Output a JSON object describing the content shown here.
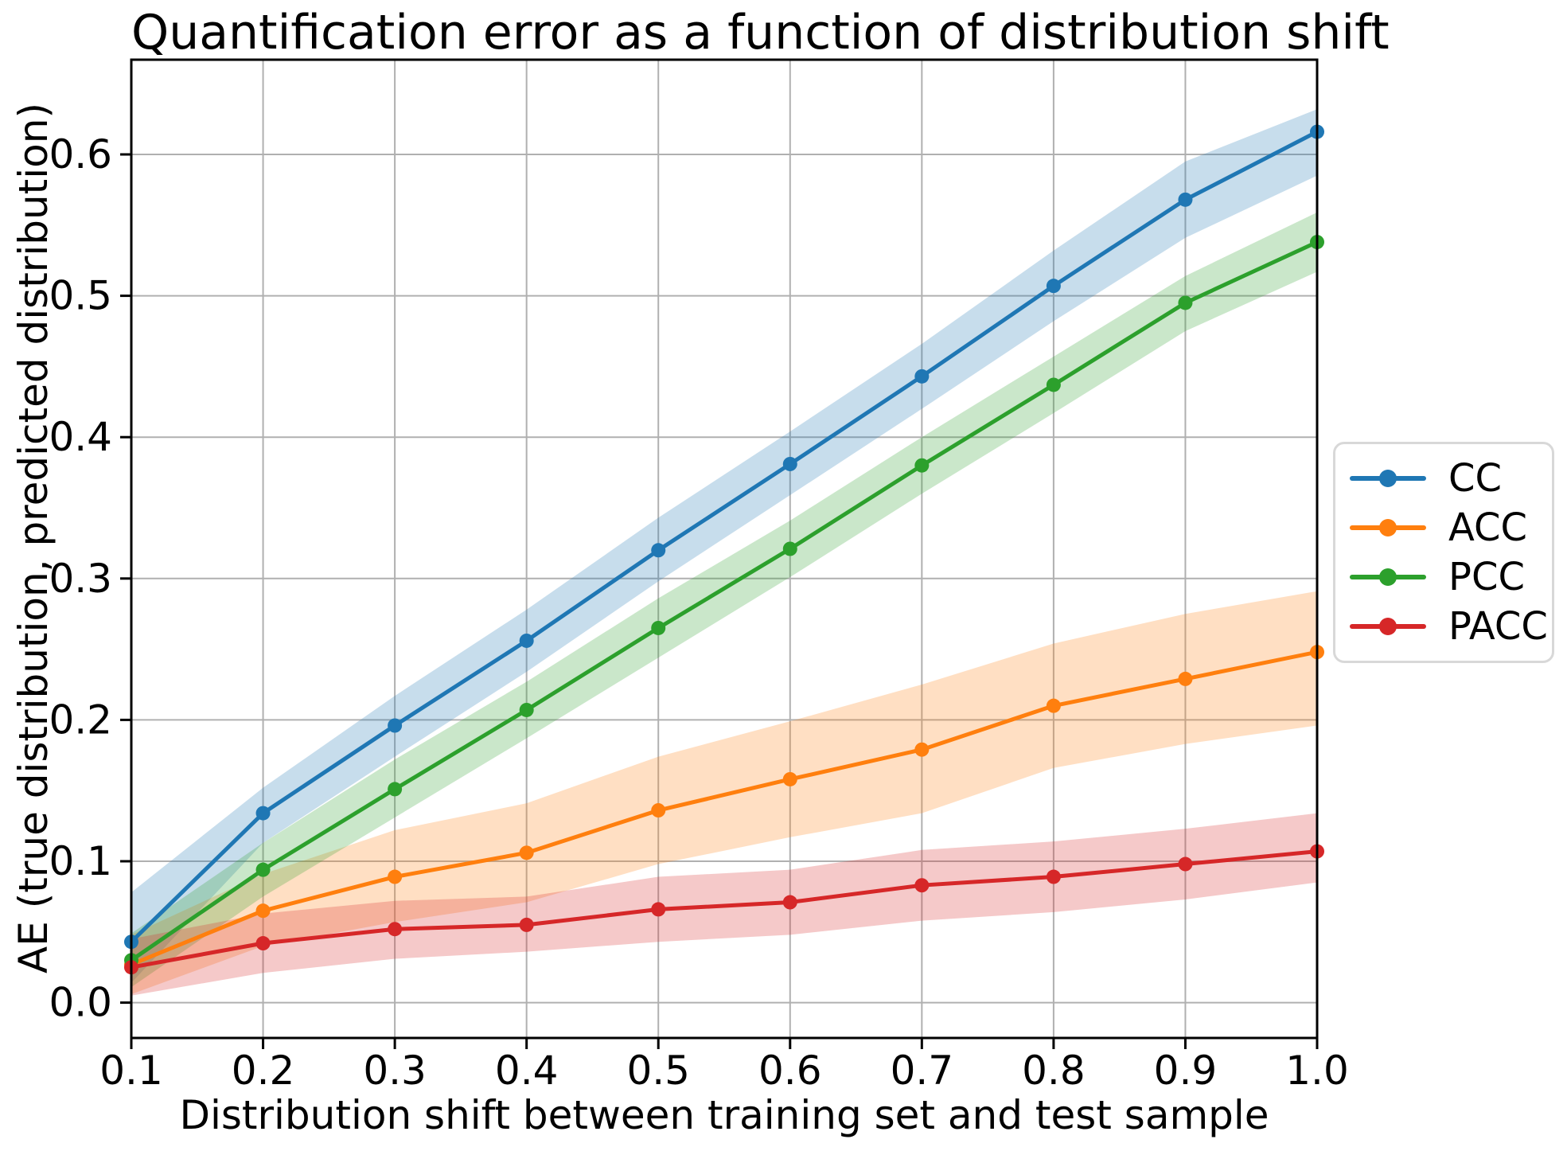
{
  "chart_data": {
    "type": "line",
    "title": "Quantification error as a function of distribution shift",
    "xlabel": "Distribution shift between training set and test sample",
    "ylabel": "AE (true distribution, predicted distribution)",
    "x": [
      0.1,
      0.2,
      0.3,
      0.4,
      0.5,
      0.6,
      0.7,
      0.8,
      0.9,
      1.0
    ],
    "x_ticks": [
      "0.1",
      "0.2",
      "0.3",
      "0.4",
      "0.5",
      "0.6",
      "0.7",
      "0.8",
      "0.9",
      "1.0"
    ],
    "y_ticks": [
      "0.0",
      "0.1",
      "0.2",
      "0.3",
      "0.4",
      "0.5",
      "0.6"
    ],
    "xlim": [
      0.1,
      1.0
    ],
    "ylim": [
      -0.025,
      0.667
    ],
    "grid": true,
    "legend_position": "right of axes, outside",
    "band_opacity": 0.25,
    "colors": {
      "grid": "#b0b0b0",
      "spine": "#000000",
      "background": "#ffffff"
    },
    "series": [
      {
        "name": "CC",
        "color": "#1f77b4",
        "values": [
          0.043,
          0.134,
          0.196,
          0.256,
          0.32,
          0.381,
          0.443,
          0.507,
          0.568,
          0.616
        ],
        "band_low": [
          0.014,
          0.113,
          0.174,
          0.234,
          0.298,
          0.359,
          0.42,
          0.482,
          0.541,
          0.585
        ],
        "band_high": [
          0.078,
          0.152,
          0.217,
          0.278,
          0.343,
          0.404,
          0.466,
          0.532,
          0.595,
          0.632
        ]
      },
      {
        "name": "ACC",
        "color": "#ff7f0e",
        "values": [
          0.027,
          0.065,
          0.089,
          0.106,
          0.136,
          0.158,
          0.179,
          0.21,
          0.229,
          0.248
        ],
        "band_low": [
          0.006,
          0.04,
          0.057,
          0.071,
          0.098,
          0.117,
          0.134,
          0.166,
          0.183,
          0.196
        ],
        "band_high": [
          0.048,
          0.091,
          0.122,
          0.141,
          0.174,
          0.199,
          0.225,
          0.254,
          0.275,
          0.291
        ]
      },
      {
        "name": "PCC",
        "color": "#2ca02c",
        "values": [
          0.03,
          0.094,
          0.151,
          0.207,
          0.265,
          0.321,
          0.38,
          0.437,
          0.495,
          0.538
        ],
        "band_low": [
          0.011,
          0.075,
          0.131,
          0.187,
          0.244,
          0.301,
          0.36,
          0.417,
          0.475,
          0.517
        ],
        "band_high": [
          0.049,
          0.113,
          0.172,
          0.227,
          0.286,
          0.341,
          0.4,
          0.457,
          0.514,
          0.559
        ]
      },
      {
        "name": "PACC",
        "color": "#d62728",
        "values": [
          0.025,
          0.042,
          0.052,
          0.055,
          0.066,
          0.071,
          0.083,
          0.089,
          0.098,
          0.107
        ],
        "band_low": [
          0.005,
          0.021,
          0.031,
          0.036,
          0.043,
          0.048,
          0.058,
          0.064,
          0.073,
          0.085
        ],
        "band_high": [
          0.045,
          0.063,
          0.072,
          0.075,
          0.089,
          0.094,
          0.108,
          0.114,
          0.123,
          0.134
        ]
      }
    ]
  }
}
